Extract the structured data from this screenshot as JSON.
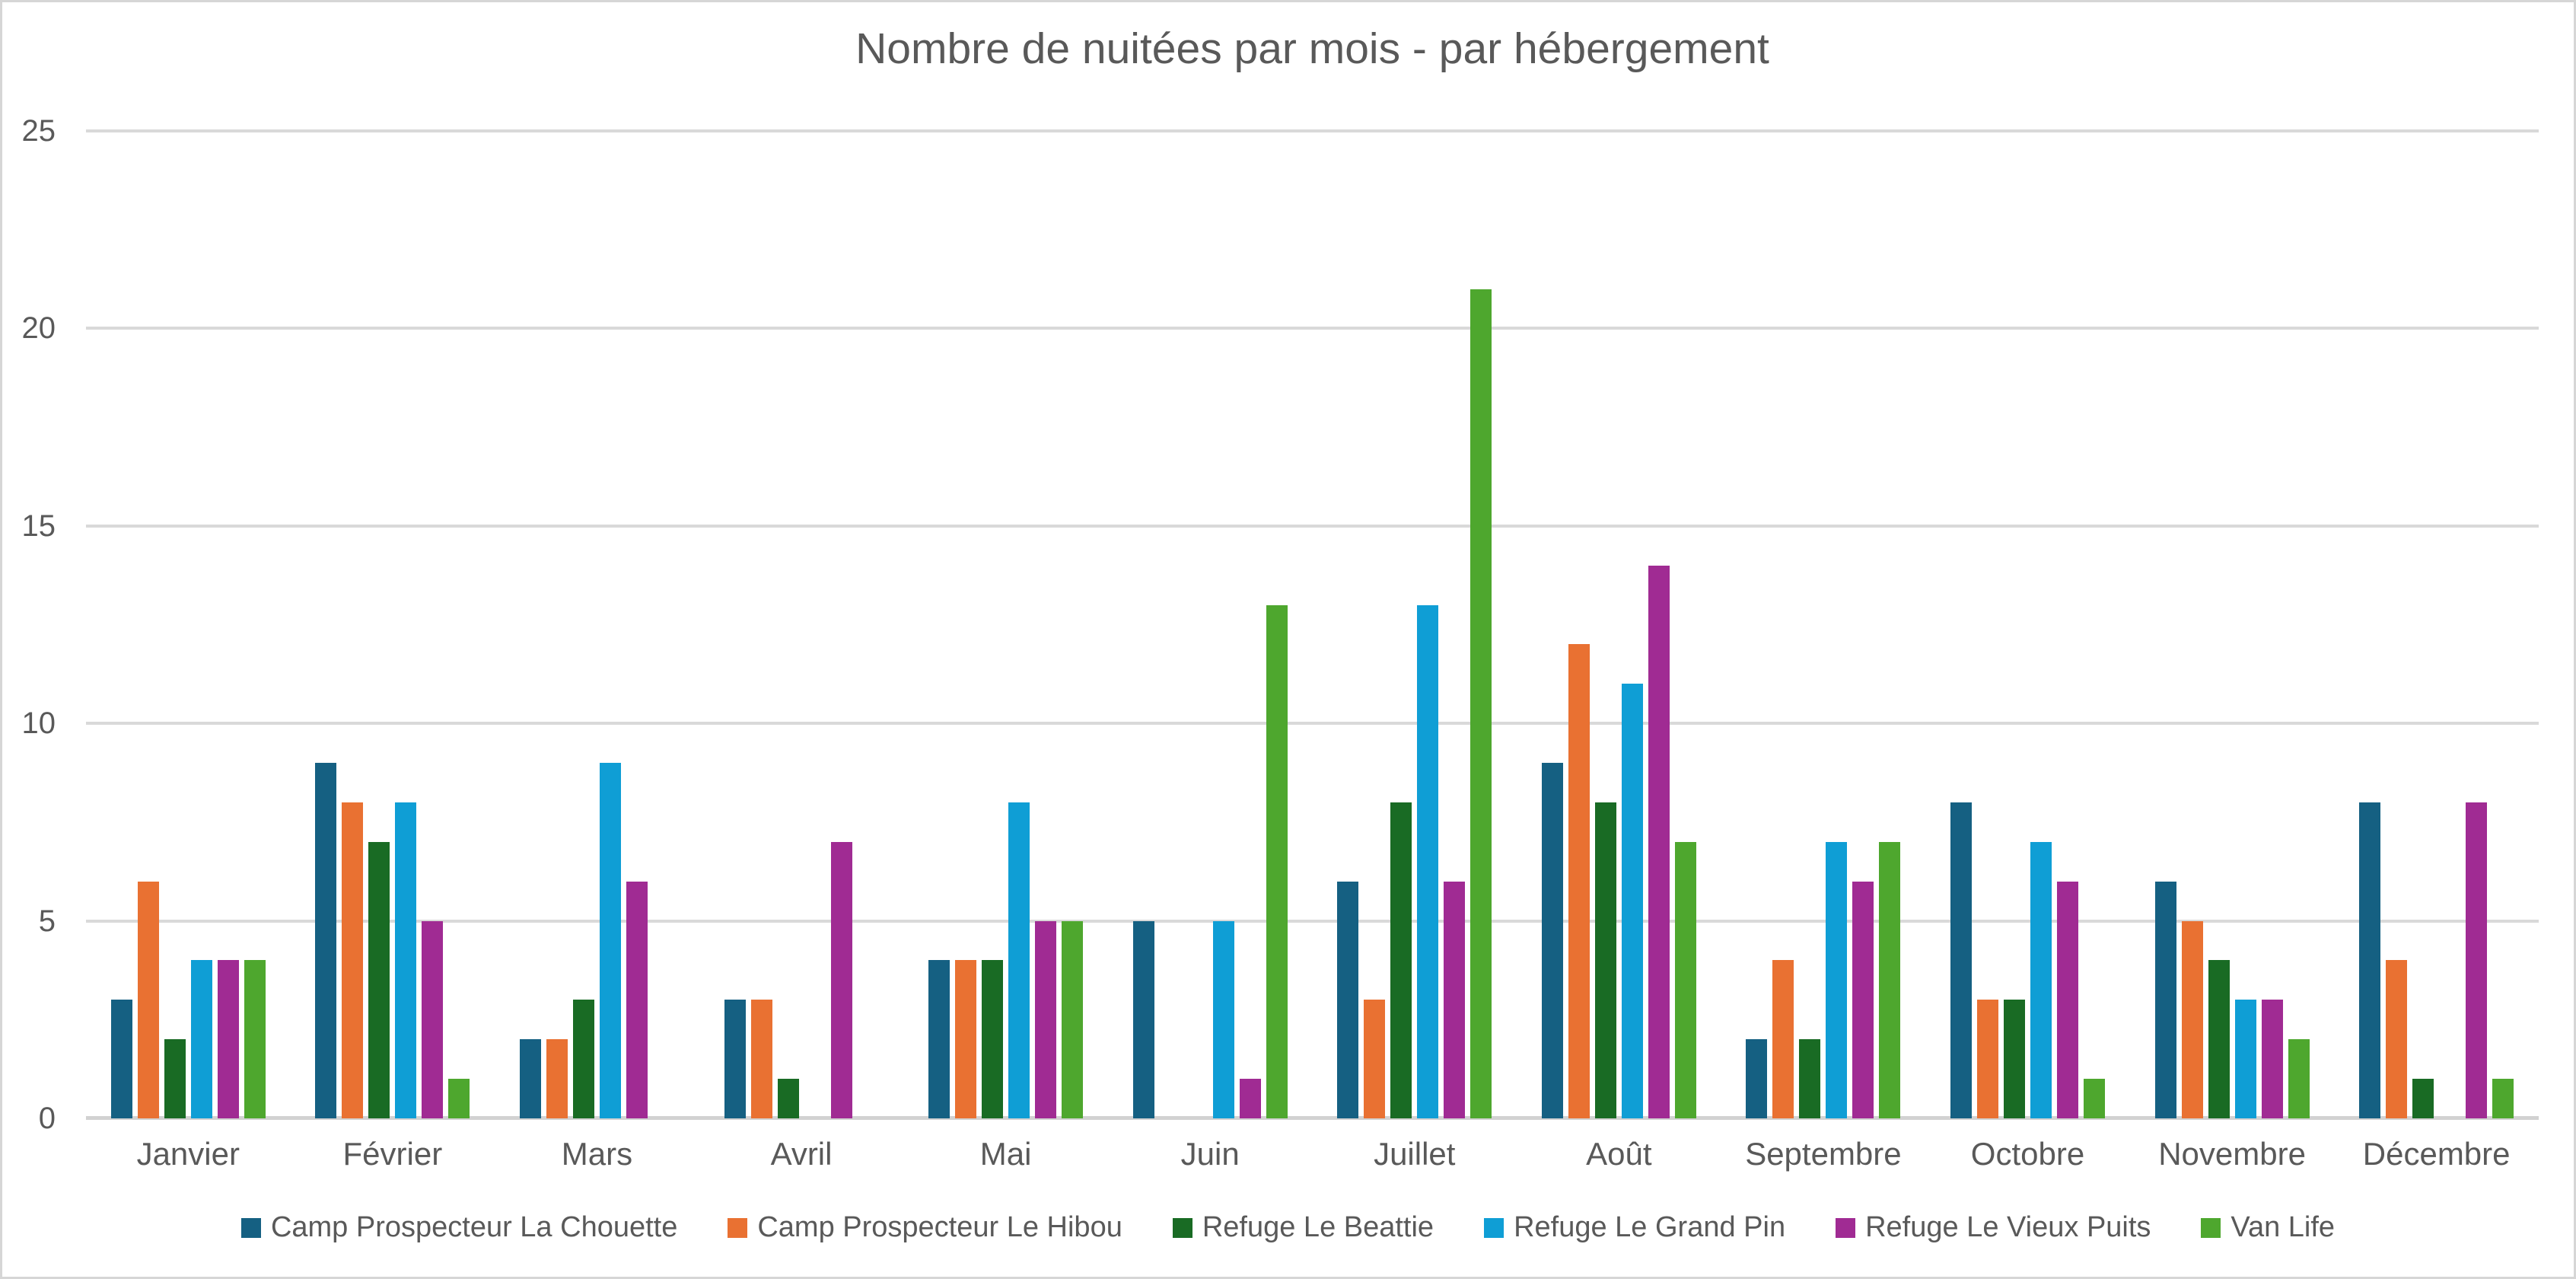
{
  "chart_data": {
    "type": "bar",
    "title": "Nombre de nuitées par mois - par hébergement",
    "categories": [
      "Janvier",
      "Février",
      "Mars",
      "Avril",
      "Mai",
      "Juin",
      "Juillet",
      "Août",
      "Septembre",
      "Octobre",
      "Novembre",
      "Décembre"
    ],
    "series": [
      {
        "name": "Camp Prospecteur La Chouette",
        "color": "#156082",
        "values": [
          3,
          9,
          2,
          3,
          4,
          5,
          6,
          9,
          2,
          8,
          6,
          8
        ]
      },
      {
        "name": "Camp Prospecteur Le Hibou",
        "color": "#E97132",
        "values": [
          6,
          8,
          2,
          3,
          4,
          0,
          3,
          12,
          4,
          3,
          5,
          4
        ]
      },
      {
        "name": "Refuge Le Beattie",
        "color": "#196B24",
        "values": [
          2,
          7,
          3,
          1,
          4,
          0,
          8,
          8,
          2,
          3,
          4,
          1
        ]
      },
      {
        "name": "Refuge Le Grand Pin",
        "color": "#0F9ED5",
        "values": [
          4,
          8,
          9,
          0,
          8,
          5,
          13,
          11,
          7,
          7,
          3,
          0
        ]
      },
      {
        "name": "Refuge Le Vieux Puits",
        "color": "#A02B93",
        "values": [
          4,
          5,
          6,
          7,
          5,
          1,
          6,
          14,
          6,
          6,
          3,
          8
        ]
      },
      {
        "name": "Van Life",
        "color": "#4EA72E",
        "values": [
          4,
          1,
          0,
          0,
          5,
          13,
          21,
          7,
          7,
          1,
          2,
          1
        ]
      }
    ],
    "y_ticks": [
      0,
      5,
      10,
      15,
      20,
      25
    ],
    "ylim": [
      0,
      25
    ],
    "grid": true,
    "legend_position": "bottom"
  },
  "colors": {
    "title_text": "#595959",
    "axis_text": "#595959",
    "gridline": "#D9D9D9",
    "baseline": "#D2D2D2",
    "frame_border": "#D6D6D6",
    "background": "#FFFFFF"
  }
}
